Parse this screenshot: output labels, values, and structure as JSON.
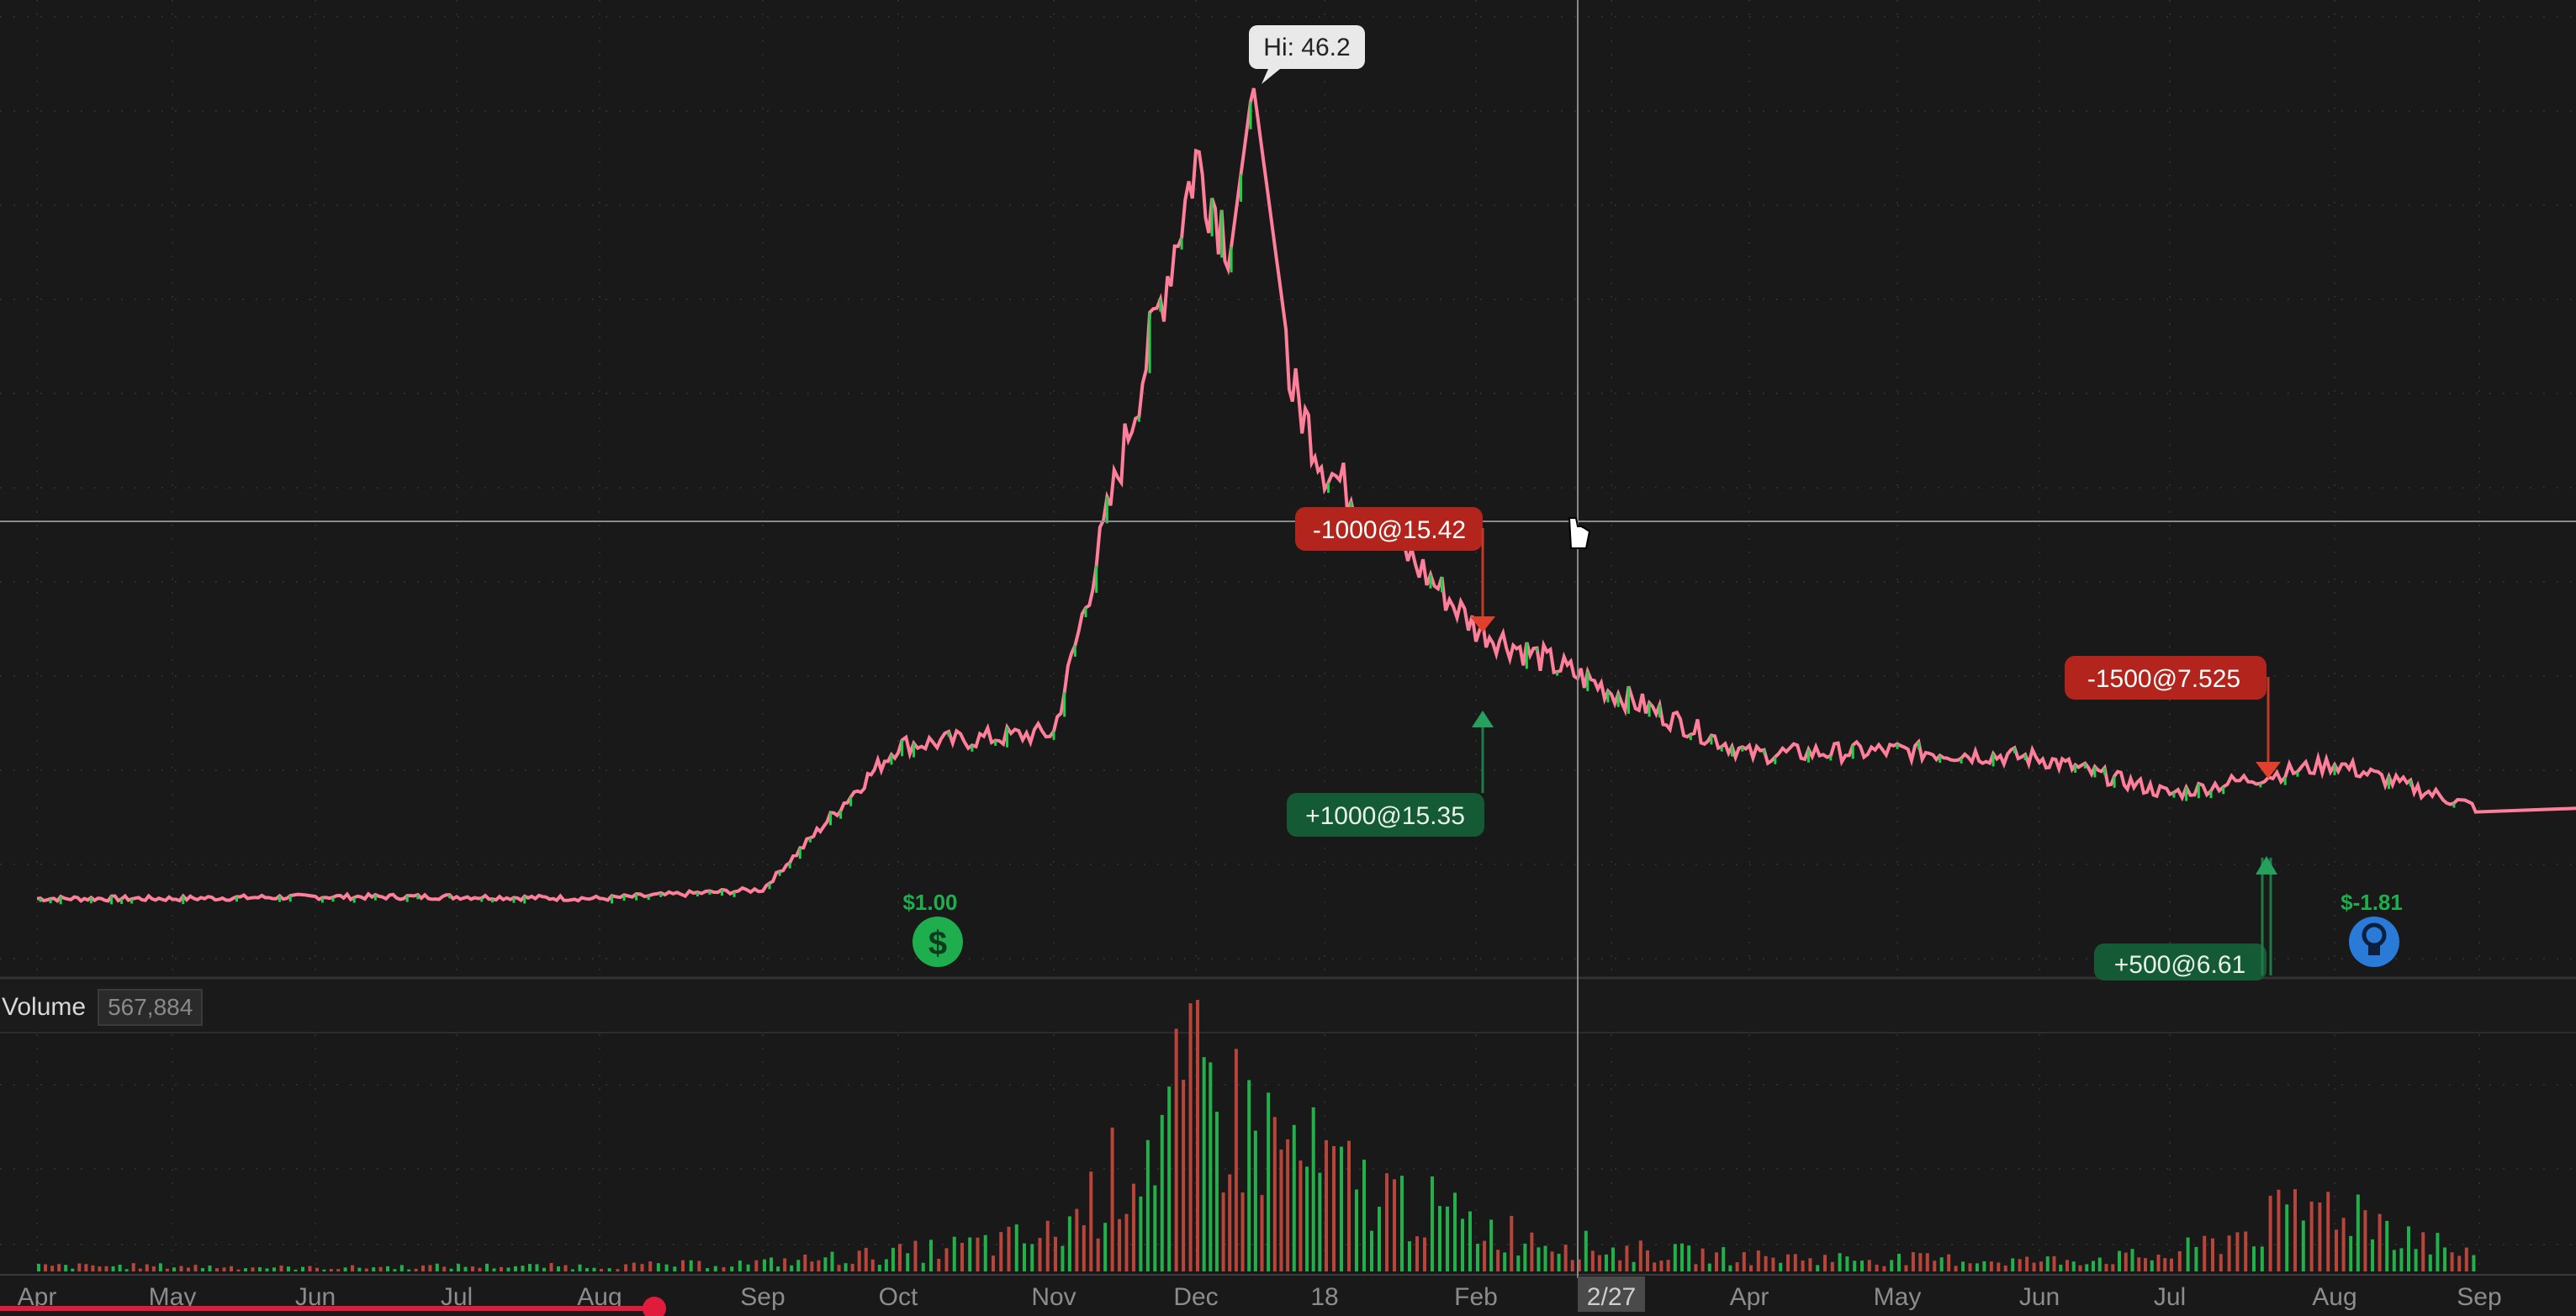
{
  "hi_label": "Hi: 46.2",
  "orders": [
    {
      "text": "-1000@15.42",
      "side": "sell"
    },
    {
      "text": "+1000@15.35",
      "side": "buy"
    },
    {
      "text": "-1500@7.525",
      "side": "sell"
    },
    {
      "text": "+500@6.61",
      "side": "buy"
    }
  ],
  "events": [
    {
      "text": "$1.00",
      "icon": "dividend-icon",
      "color": "#1fae4e"
    },
    {
      "text": "$-1.81",
      "icon": "earnings-bulb-icon",
      "color": "#2a7bd8"
    }
  ],
  "volume": {
    "label": "Volume",
    "value": "567,884"
  },
  "x_axis": {
    "months": [
      "Apr",
      "May",
      "Jun",
      "Jul",
      "Aug",
      "Sep",
      "Oct",
      "Nov",
      "Dec",
      "18",
      "Feb",
      "2/27",
      "Apr",
      "May",
      "Jun",
      "Jul",
      "Aug",
      "Sep"
    ],
    "cursor_label": "2/27"
  },
  "colors": {
    "background": "#191919",
    "up": "#1fd24a",
    "down": "#ff7e9a",
    "sell_bubble": "#b3241c",
    "buy_bubble": "#145a34",
    "scrubber": "#e11b3c"
  },
  "chart_data": {
    "type": "line",
    "title": "",
    "xlabel": "",
    "ylabel": "",
    "x": [
      "Apr",
      "May",
      "Jun",
      "Jul",
      "Aug",
      "Sep",
      "Oct",
      "Nov",
      "Dec",
      "18",
      "Feb",
      "2/27",
      "Apr",
      "May",
      "Jun",
      "Jul",
      "Aug",
      "Sep"
    ],
    "series": [
      {
        "values": [
          1.0,
          1.0,
          1.1,
          1.1,
          1.0,
          1.5,
          9.5,
          10.2,
          42.0,
          25.0,
          16.0,
          12.5,
          9.0,
          9.2,
          8.8,
          6.8,
          8.5,
          6.0
        ]
      }
    ],
    "high": 46.2,
    "volume": {
      "series": [
        {
          "name": "Volume",
          "values": [
            0.03,
            0.03,
            0.02,
            0.03,
            0.03,
            0.05,
            0.1,
            0.2,
            1.0,
            0.55,
            0.25,
            0.12,
            0.08,
            0.07,
            0.06,
            0.09,
            0.4,
            0.05
          ]
        }
      ]
    },
    "grid": true
  }
}
